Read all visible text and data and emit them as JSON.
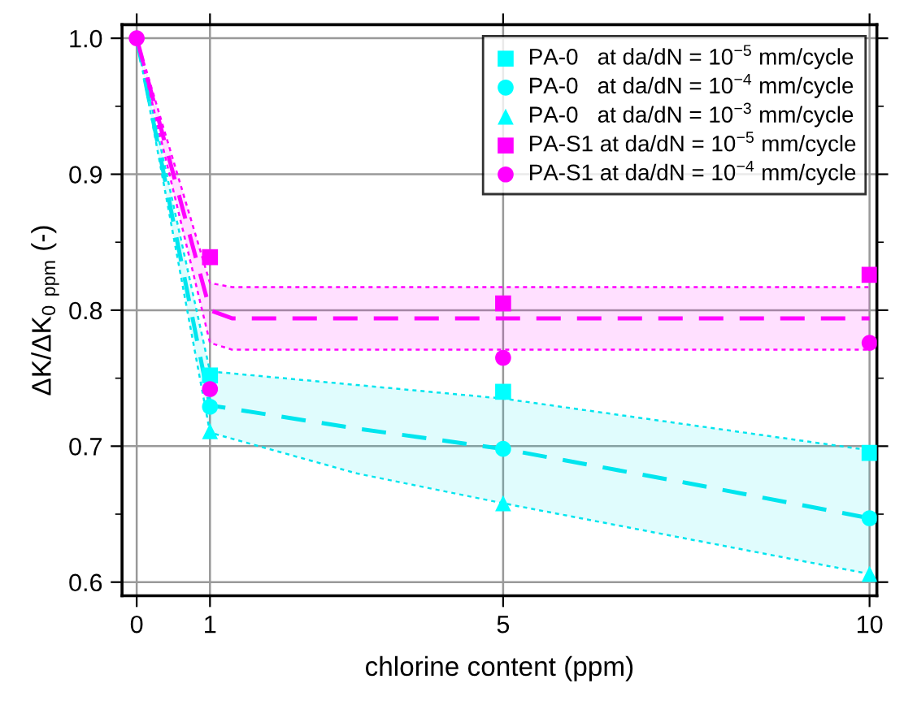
{
  "chart_data": {
    "type": "scatter",
    "xlabel": "chlorine content (ppm)",
    "ylabel": "ΔK/ΔK$_{0 ppm}$ (-)",
    "x": [
      0,
      1,
      5,
      10
    ],
    "series": [
      {
        "name": "PA-0   at da/dN = 10$^{−5}$ mm/cycle",
        "color": "#00ffff",
        "marker": "square",
        "values": [
          null,
          0.752,
          0.74,
          0.695
        ]
      },
      {
        "name": "PA-0   at da/dN = 10$^{−4}$ mm/cycle",
        "color": "#00ffff",
        "marker": "circle",
        "values": [
          null,
          0.729,
          0.698,
          0.647
        ]
      },
      {
        "name": "PA-0   at da/dN = 10$^{−3}$ mm/cycle",
        "color": "#00ffff",
        "marker": "triangle",
        "values": [
          null,
          0.711,
          0.658,
          0.606
        ]
      },
      {
        "name": "PA-S1 at da/dN = 10$^{−5}$ mm/cycle",
        "color": "#ff00ff",
        "marker": "square",
        "values": [
          null,
          0.839,
          0.805,
          0.826
        ]
      },
      {
        "name": "PA-S1 at da/dN = 10$^{−4}$ mm/cycle",
        "color": "#ff00ff",
        "marker": "circle",
        "values": [
          1.0,
          0.742,
          0.765,
          0.776
        ]
      },
      {
        "type": "line",
        "color": "#00e5ee",
        "line_style": "dashed",
        "x": [
          0,
          1,
          3,
          5,
          7.5,
          10
        ],
        "values": [
          1.0,
          0.73,
          0.713,
          0.698,
          0.673,
          0.647
        ],
        "lower": [
          1.0,
          0.71,
          0.68,
          0.658,
          0.632,
          0.606
        ],
        "upper": [
          1.0,
          0.755,
          0.745,
          0.735,
          0.716,
          0.697
        ]
      },
      {
        "type": "line",
        "color": "#00e5ee",
        "line_style": "dotted",
        "x": [
          0,
          1,
          3,
          5,
          7.5,
          10
        ],
        "values": [
          1.0,
          0.755,
          0.745,
          0.735,
          0.716,
          0.697
        ]
      },
      {
        "type": "line",
        "color": "#00e5ee",
        "line_style": "dotted",
        "x": [
          0,
          1,
          3,
          5,
          7.5,
          10
        ],
        "values": [
          1.0,
          0.71,
          0.68,
          0.658,
          0.632,
          0.606
        ]
      },
      {
        "type": "line",
        "color": "#ff00ff",
        "line_style": "dashed",
        "x": [
          0,
          1,
          1.3,
          5,
          10
        ],
        "values": [
          1.0,
          0.8,
          0.794,
          0.794,
          0.794
        ],
        "lower": [
          1.0,
          0.776,
          0.771,
          0.771,
          0.771
        ],
        "upper": [
          1.0,
          0.82,
          0.817,
          0.817,
          0.817
        ]
      },
      {
        "type": "line",
        "color": "#ff00ff",
        "line_style": "dotted",
        "x": [
          0,
          1,
          1.3,
          5,
          10
        ],
        "values": [
          1.0,
          0.82,
          0.817,
          0.817,
          0.817
        ]
      },
      {
        "type": "line",
        "color": "#ff00ff",
        "line_style": "dotted",
        "x": [
          0,
          1,
          1.3,
          5,
          10
        ],
        "values": [
          1.0,
          0.776,
          0.771,
          0.771,
          0.771
        ]
      }
    ],
    "xlim": [
      -0.2,
      10.1
    ],
    "ylim": [
      0.59,
      1.01
    ],
    "xticks": [
      0,
      1,
      5,
      10
    ],
    "yticks": [
      {
        "value": 0.6,
        "label": "0.6"
      },
      {
        "value": 0.65,
        "label": null
      },
      {
        "value": 0.7,
        "label": "0.7"
      },
      {
        "value": 0.75,
        "label": null
      },
      {
        "value": 0.8,
        "label": "0.8"
      },
      {
        "value": 0.85,
        "label": null
      },
      {
        "value": 0.9,
        "label": "0.9"
      },
      {
        "value": 0.95,
        "label": null
      },
      {
        "value": 1.0,
        "label": "1.0"
      }
    ],
    "grid": true,
    "legend": "top right"
  }
}
